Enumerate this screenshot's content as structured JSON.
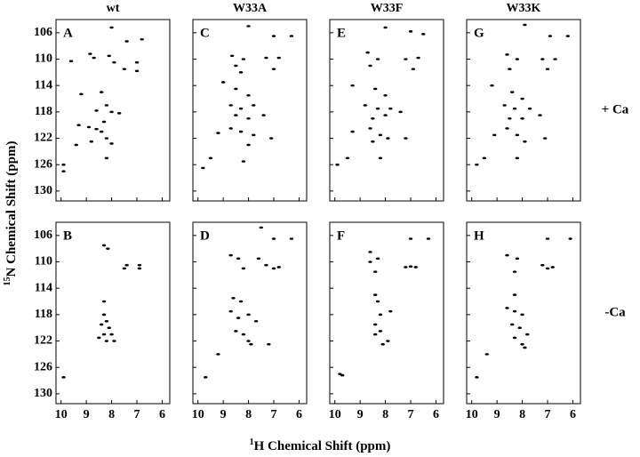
{
  "figure": {
    "columns": [
      "wt",
      "W33A",
      "W33F",
      "W33K"
    ],
    "rows": [
      "+ Ca",
      "-Ca"
    ],
    "x_label_sup": "1",
    "x_label": "H Chemical Shift (ppm)",
    "y_label_sup": "15",
    "y_label": "N Chemical Shift (ppm)"
  },
  "chart_data": [
    {
      "type": "scatter",
      "title": "A",
      "color": "#000000",
      "xlim": [
        10.2,
        5.7
      ],
      "ylim": [
        104,
        131.5
      ],
      "xticks": [
        10,
        9,
        8,
        7,
        6
      ],
      "yticks": [
        106,
        110,
        114,
        118,
        122,
        126,
        130
      ],
      "x": [
        8.0,
        7.4,
        6.8,
        8.85,
        8.7,
        8.1,
        7.9,
        9.6,
        7.5,
        7.0,
        7.0,
        9.2,
        8.4,
        8.2,
        8.6,
        8.0,
        7.7,
        8.3,
        9.3,
        8.9,
        8.6,
        8.4,
        8.2,
        8.8,
        8.0,
        9.4,
        8.2,
        9.9,
        9.9
      ],
      "y": [
        105.2,
        107.3,
        107.0,
        109.2,
        109.8,
        109.5,
        110.5,
        110.3,
        111.5,
        110.5,
        111.8,
        115.3,
        115.0,
        117.0,
        117.8,
        118.0,
        118.2,
        119.5,
        120.0,
        120.3,
        120.6,
        121.0,
        122.0,
        122.5,
        122.8,
        123.0,
        125.0,
        126.0,
        127.0
      ]
    },
    {
      "type": "scatter",
      "title": "C",
      "color": "#000000",
      "xlim": [
        10.2,
        5.7
      ],
      "ylim": [
        104,
        131.5
      ],
      "xticks": [
        10,
        9,
        8,
        7,
        6
      ],
      "yticks": [
        106,
        110,
        114,
        118,
        122,
        126,
        130
      ],
      "x": [
        8.0,
        7.0,
        6.3,
        8.65,
        8.2,
        7.3,
        6.8,
        7.0,
        8.5,
        8.3,
        9.0,
        8.5,
        8.0,
        8.7,
        8.3,
        7.8,
        8.5,
        8.0,
        7.4,
        8.7,
        8.3,
        7.8,
        7.1,
        9.2,
        8.0,
        9.5,
        8.2,
        9.8
      ],
      "y": [
        105.0,
        106.5,
        106.5,
        109.5,
        110.0,
        109.8,
        109.8,
        111.5,
        111.0,
        112.0,
        113.5,
        114.5,
        115.5,
        117.0,
        117.5,
        117.0,
        118.5,
        119.0,
        118.5,
        120.5,
        121.0,
        121.5,
        122.0,
        121.2,
        123.0,
        125.0,
        125.5,
        126.5
      ]
    },
    {
      "type": "scatter",
      "title": "E",
      "color": "#000000",
      "xlim": [
        10.2,
        5.7
      ],
      "ylim": [
        104,
        131.5
      ],
      "xticks": [
        10,
        9,
        8,
        7,
        6
      ],
      "yticks": [
        106,
        110,
        114,
        118,
        122,
        126,
        130
      ],
      "x": [
        8.0,
        7.0,
        6.5,
        8.7,
        8.3,
        7.2,
        6.7,
        6.9,
        8.6,
        9.3,
        8.4,
        8.0,
        8.8,
        8.3,
        7.8,
        8.5,
        8.0,
        7.4,
        8.6,
        8.2,
        7.9,
        9.3,
        8.5,
        7.2,
        8.2,
        9.5,
        9.9
      ],
      "y": [
        105.2,
        105.8,
        106.2,
        109.0,
        110.0,
        110.0,
        109.8,
        111.5,
        111.0,
        114.0,
        114.5,
        115.5,
        117.0,
        117.5,
        117.5,
        119.0,
        118.5,
        118.0,
        120.5,
        121.5,
        122.0,
        121.0,
        122.5,
        122.0,
        125.0,
        125.0,
        126.0
      ]
    },
    {
      "type": "scatter",
      "title": "G",
      "color": "#000000",
      "xlim": [
        10.2,
        5.7
      ],
      "ylim": [
        104,
        131.5
      ],
      "xticks": [
        10,
        9,
        8,
        7,
        6
      ],
      "yticks": [
        106,
        110,
        114,
        118,
        122,
        126,
        130
      ],
      "x": [
        7.9,
        6.9,
        6.2,
        8.6,
        8.2,
        7.2,
        6.7,
        7.0,
        8.5,
        9.2,
        8.4,
        8.0,
        8.7,
        8.3,
        7.7,
        8.5,
        8.0,
        7.3,
        8.6,
        8.2,
        7.9,
        7.1,
        9.1,
        8.2,
        9.5,
        9.8
      ],
      "y": [
        104.8,
        106.5,
        106.5,
        109.3,
        110.0,
        110.0,
        110.0,
        111.5,
        111.5,
        114.0,
        115.0,
        116.0,
        117.0,
        117.5,
        117.5,
        119.0,
        119.0,
        118.5,
        120.5,
        121.5,
        122.5,
        122.0,
        121.5,
        125.0,
        125.0,
        126.0
      ]
    },
    {
      "type": "scatter",
      "title": "B",
      "color": "#000000",
      "xlim": [
        10.2,
        5.7
      ],
      "ylim": [
        104,
        131.5
      ],
      "xticks": [
        10,
        9,
        8,
        7,
        6
      ],
      "yticks": [
        106,
        110,
        114,
        118,
        122,
        126,
        130
      ],
      "x": [
        8.3,
        8.15,
        7.4,
        7.5,
        6.9,
        6.9,
        8.3,
        8.3,
        8.2,
        8.4,
        8.1,
        8.3,
        8.0,
        8.2,
        8.5,
        7.9,
        9.9
      ],
      "y": [
        107.5,
        108.0,
        110.5,
        111.0,
        110.5,
        111.0,
        116.0,
        118.0,
        119.0,
        119.5,
        120.0,
        121.0,
        121.0,
        122.0,
        121.5,
        122.0,
        127.5
      ]
    },
    {
      "type": "scatter",
      "title": "D",
      "color": "#000000",
      "xlim": [
        10.2,
        5.7
      ],
      "ylim": [
        104,
        131.5
      ],
      "xticks": [
        10,
        9,
        8,
        7,
        6
      ],
      "yticks": [
        106,
        110,
        114,
        118,
        122,
        126,
        130
      ],
      "x": [
        7.5,
        7.0,
        6.3,
        8.7,
        8.4,
        7.6,
        7.3,
        6.8,
        7.0,
        8.2,
        8.6,
        8.3,
        8.7,
        8.4,
        8.0,
        7.7,
        8.5,
        8.2,
        8.0,
        7.9,
        7.2,
        9.2,
        9.7
      ],
      "y": [
        104.8,
        106.5,
        106.5,
        109.0,
        109.5,
        109.5,
        110.5,
        110.8,
        111.0,
        111.0,
        115.5,
        116.0,
        117.5,
        118.5,
        118.0,
        119.0,
        120.5,
        121.0,
        122.0,
        122.5,
        122.5,
        124.0,
        127.5
      ]
    },
    {
      "type": "scatter",
      "title": "F",
      "color": "#000000",
      "xlim": [
        10.2,
        5.7
      ],
      "ylim": [
        104,
        131.5
      ],
      "xticks": [
        10,
        9,
        8,
        7,
        6
      ],
      "yticks": [
        106,
        110,
        114,
        118,
        122,
        126,
        130
      ],
      "x": [
        7.0,
        6.3,
        8.6,
        8.3,
        8.6,
        7.2,
        6.8,
        7.0,
        8.4,
        8.4,
        8.3,
        8.2,
        7.8,
        8.4,
        8.2,
        8.4,
        7.9,
        8.1,
        9.8,
        9.7
      ],
      "y": [
        106.5,
        106.5,
        108.5,
        109.5,
        110.0,
        110.8,
        110.8,
        110.7,
        111.5,
        115.0,
        116.0,
        118.0,
        117.5,
        119.5,
        120.5,
        121.0,
        122.0,
        122.5,
        127.0,
        127.2
      ]
    },
    {
      "type": "scatter",
      "title": "H",
      "color": "#000000",
      "xlim": [
        10.2,
        5.7
      ],
      "ylim": [
        104,
        131.5
      ],
      "xticks": [
        10,
        9,
        8,
        7,
        6
      ],
      "yticks": [
        106,
        110,
        114,
        118,
        122,
        126,
        130
      ],
      "x": [
        7.0,
        6.1,
        8.6,
        8.2,
        7.2,
        6.8,
        7.0,
        8.3,
        8.3,
        8.6,
        8.3,
        8.0,
        8.4,
        8.1,
        7.8,
        8.3,
        8.0,
        7.9,
        9.4,
        9.8
      ],
      "y": [
        106.5,
        106.5,
        109.0,
        109.5,
        110.5,
        110.8,
        111.0,
        111.5,
        115.0,
        117.0,
        117.5,
        118.0,
        119.5,
        120.0,
        121.0,
        121.5,
        122.5,
        123.0,
        124.0,
        127.5
      ]
    }
  ]
}
